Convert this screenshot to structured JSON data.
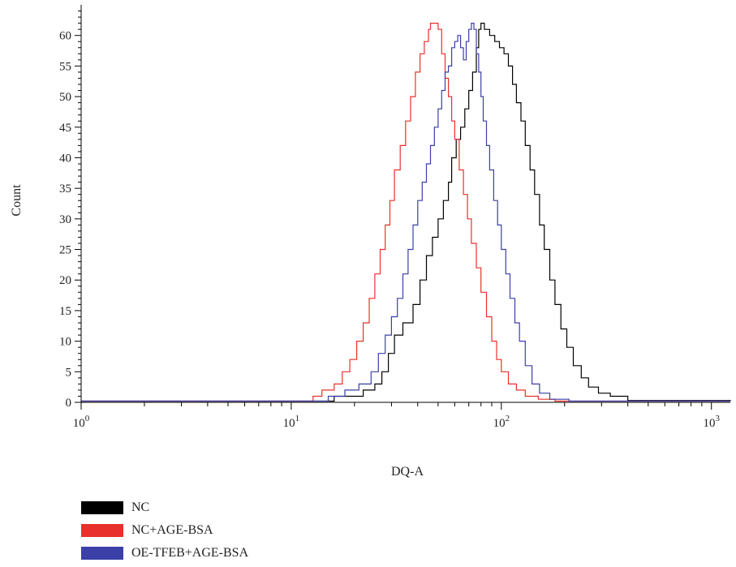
{
  "chart_data": {
    "type": "line",
    "xlabel": "DQ-A",
    "ylabel": "Count",
    "xscale": "log",
    "xlim": [
      1,
      1230
    ],
    "ylim": [
      0,
      65
    ],
    "yticks": [
      0,
      5,
      10,
      15,
      20,
      25,
      30,
      35,
      40,
      45,
      50,
      55,
      60
    ],
    "xticks": [
      {
        "base": "10",
        "exp": "0",
        "value": 1
      },
      {
        "base": "10",
        "exp": "1",
        "value": 10
      },
      {
        "base": "10",
        "exp": "2",
        "value": 100
      },
      {
        "base": "10",
        "exp": "3",
        "value": 1000
      }
    ],
    "legend_position": "below",
    "series": [
      {
        "name": "NC",
        "color": "#000000",
        "points": [
          [
            1,
            0.2
          ],
          [
            16,
            0.2
          ],
          [
            16,
            1
          ],
          [
            20,
            1
          ],
          [
            22,
            2
          ],
          [
            25,
            3
          ],
          [
            27,
            5
          ],
          [
            29,
            8
          ],
          [
            31,
            11
          ],
          [
            34,
            13
          ],
          [
            38,
            16
          ],
          [
            41,
            20
          ],
          [
            44,
            24
          ],
          [
            47,
            27
          ],
          [
            50,
            30
          ],
          [
            53,
            33
          ],
          [
            56,
            36
          ],
          [
            58,
            40
          ],
          [
            61,
            43
          ],
          [
            64,
            45
          ],
          [
            67,
            48
          ],
          [
            70,
            51
          ],
          [
            73,
            54
          ],
          [
            76,
            58
          ],
          [
            78,
            61
          ],
          [
            80,
            62
          ],
          [
            83,
            61
          ],
          [
            88,
            60
          ],
          [
            93,
            59
          ],
          [
            98,
            58
          ],
          [
            103,
            57
          ],
          [
            108,
            55
          ],
          [
            113,
            52
          ],
          [
            118,
            49
          ],
          [
            124,
            46
          ],
          [
            130,
            42
          ],
          [
            137,
            38
          ],
          [
            144,
            34
          ],
          [
            152,
            29
          ],
          [
            160,
            25
          ],
          [
            170,
            20
          ],
          [
            180,
            16
          ],
          [
            192,
            12
          ],
          [
            205,
            9
          ],
          [
            220,
            6
          ],
          [
            240,
            4
          ],
          [
            260,
            2.5
          ],
          [
            290,
            1.5
          ],
          [
            330,
            1
          ],
          [
            400,
            0.3
          ],
          [
            1230,
            0.2
          ]
        ]
      },
      {
        "name": "NC+AGE-BSA",
        "color": "#e8312a",
        "points": [
          [
            1,
            0.2
          ],
          [
            12.7,
            0.2
          ],
          [
            12.7,
            1
          ],
          [
            14,
            2
          ],
          [
            16,
            3
          ],
          [
            17.5,
            5
          ],
          [
            19,
            7
          ],
          [
            20.5,
            10
          ],
          [
            22,
            13
          ],
          [
            23.5,
            17
          ],
          [
            25,
            21
          ],
          [
            26.5,
            25
          ],
          [
            28,
            29
          ],
          [
            29.5,
            33
          ],
          [
            31,
            38
          ],
          [
            33,
            42
          ],
          [
            35,
            46
          ],
          [
            37,
            50
          ],
          [
            39,
            54
          ],
          [
            41,
            57
          ],
          [
            43,
            59
          ],
          [
            45,
            61
          ],
          [
            46,
            62
          ],
          [
            48,
            62
          ],
          [
            50,
            61
          ],
          [
            52,
            57
          ],
          [
            54,
            53
          ],
          [
            56,
            50
          ],
          [
            58,
            46
          ],
          [
            60,
            43
          ],
          [
            63,
            38
          ],
          [
            66,
            34
          ],
          [
            69,
            30
          ],
          [
            72,
            26
          ],
          [
            76,
            22
          ],
          [
            80,
            18
          ],
          [
            85,
            14
          ],
          [
            90,
            10
          ],
          [
            95,
            7
          ],
          [
            100,
            5
          ],
          [
            108,
            3
          ],
          [
            118,
            2
          ],
          [
            130,
            1
          ],
          [
            150,
            0.5
          ],
          [
            180,
            0.2
          ],
          [
            1230,
            0.2
          ]
        ]
      },
      {
        "name": "OE-TFEB+AGE-BSA",
        "color": "#3b3fa8",
        "points": [
          [
            1,
            0.2
          ],
          [
            15,
            0.2
          ],
          [
            15,
            1
          ],
          [
            18,
            2
          ],
          [
            21,
            3
          ],
          [
            24,
            5
          ],
          [
            26,
            8
          ],
          [
            28,
            11
          ],
          [
            30,
            14
          ],
          [
            32,
            17
          ],
          [
            34,
            21
          ],
          [
            36,
            25
          ],
          [
            38,
            29
          ],
          [
            40,
            33
          ],
          [
            42,
            36
          ],
          [
            44,
            39
          ],
          [
            46,
            42
          ],
          [
            48,
            45
          ],
          [
            50,
            48
          ],
          [
            52,
            51
          ],
          [
            54,
            54
          ],
          [
            56,
            55
          ],
          [
            58,
            58
          ],
          [
            60,
            59
          ],
          [
            62,
            60
          ],
          [
            64,
            58
          ],
          [
            66,
            56
          ],
          [
            68,
            59
          ],
          [
            70,
            61
          ],
          [
            72,
            62
          ],
          [
            74,
            61
          ],
          [
            76,
            57
          ],
          [
            78,
            54
          ],
          [
            80,
            50
          ],
          [
            82,
            46
          ],
          [
            85,
            42
          ],
          [
            88,
            38
          ],
          [
            92,
            33
          ],
          [
            96,
            29
          ],
          [
            100,
            25
          ],
          [
            105,
            21
          ],
          [
            110,
            17
          ],
          [
            116,
            13
          ],
          [
            122,
            10
          ],
          [
            130,
            6
          ],
          [
            140,
            3
          ],
          [
            152,
            1.5
          ],
          [
            170,
            0.5
          ],
          [
            210,
            0.2
          ],
          [
            1230,
            0.2
          ]
        ]
      }
    ]
  }
}
